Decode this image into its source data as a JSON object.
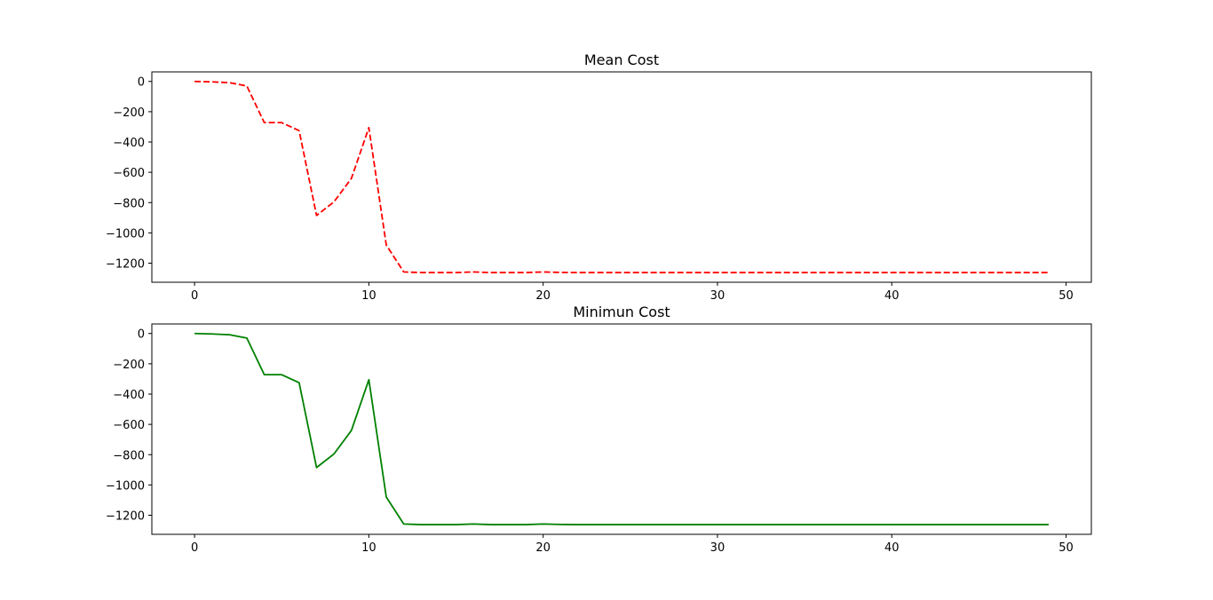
{
  "chart_data": [
    {
      "type": "line",
      "title": "Mean Cost",
      "xlabel": "",
      "ylabel": "",
      "xlim": [
        -2.45,
        51.45
      ],
      "ylim": [
        -1326,
        63
      ],
      "xticks": [
        0,
        10,
        20,
        30,
        40,
        50
      ],
      "yticks": [
        0,
        -200,
        -400,
        -600,
        -800,
        -1000,
        -1200
      ],
      "xtick_labels": [
        "0",
        "10",
        "20",
        "30",
        "40",
        "50"
      ],
      "ytick_labels": [
        "0",
        "−200",
        "−400",
        "−600",
        "−800",
        "−1000",
        "−1200"
      ],
      "grid": false,
      "series": [
        {
          "color": "#ff0000",
          "linestyle": "dashed",
          "x": [
            0,
            1,
            2,
            3,
            4,
            5,
            6,
            7,
            8,
            9,
            10,
            11,
            12,
            13,
            14,
            15,
            16,
            17,
            18,
            19,
            20,
            21,
            22,
            23,
            24,
            25,
            26,
            27,
            28,
            29,
            30,
            31,
            32,
            33,
            34,
            35,
            36,
            37,
            38,
            39,
            40,
            41,
            42,
            43,
            44,
            45,
            46,
            47,
            48,
            49
          ],
          "y": [
            0,
            -3,
            -8,
            -30,
            -272,
            -272,
            -325,
            -885,
            -795,
            -640,
            -305,
            -1080,
            -1258,
            -1262,
            -1262,
            -1262,
            -1258,
            -1262,
            -1262,
            -1262,
            -1258,
            -1261,
            -1262,
            -1262,
            -1262,
            -1262,
            -1262,
            -1262,
            -1262,
            -1262,
            -1262,
            -1262,
            -1262,
            -1262,
            -1262,
            -1262,
            -1262,
            -1262,
            -1262,
            -1262,
            -1262,
            -1262,
            -1262,
            -1262,
            -1262,
            -1262,
            -1262,
            -1262,
            -1262,
            -1262
          ]
        }
      ]
    },
    {
      "type": "line",
      "title": "Minimun Cost",
      "xlabel": "",
      "ylabel": "",
      "xlim": [
        -2.45,
        51.45
      ],
      "ylim": [
        -1326,
        63
      ],
      "xticks": [
        0,
        10,
        20,
        30,
        40,
        50
      ],
      "yticks": [
        0,
        -200,
        -400,
        -600,
        -800,
        -1000,
        -1200
      ],
      "xtick_labels": [
        "0",
        "10",
        "20",
        "30",
        "40",
        "50"
      ],
      "ytick_labels": [
        "0",
        "−200",
        "−400",
        "−600",
        "−800",
        "−1000",
        "−1200"
      ],
      "grid": false,
      "series": [
        {
          "color": "#008000",
          "linestyle": "solid",
          "x": [
            0,
            1,
            2,
            3,
            4,
            5,
            6,
            7,
            8,
            9,
            10,
            11,
            12,
            13,
            14,
            15,
            16,
            17,
            18,
            19,
            20,
            21,
            22,
            23,
            24,
            25,
            26,
            27,
            28,
            29,
            30,
            31,
            32,
            33,
            34,
            35,
            36,
            37,
            38,
            39,
            40,
            41,
            42,
            43,
            44,
            45,
            46,
            47,
            48,
            49
          ],
          "y": [
            0,
            -3,
            -8,
            -30,
            -272,
            -272,
            -325,
            -885,
            -795,
            -640,
            -305,
            -1080,
            -1258,
            -1262,
            -1262,
            -1262,
            -1258,
            -1262,
            -1262,
            -1262,
            -1258,
            -1261,
            -1262,
            -1262,
            -1262,
            -1262,
            -1262,
            -1262,
            -1262,
            -1262,
            -1262,
            -1262,
            -1262,
            -1262,
            -1262,
            -1262,
            -1262,
            -1262,
            -1262,
            -1262,
            -1262,
            -1262,
            -1262,
            -1262,
            -1262,
            -1262,
            -1262,
            -1262,
            -1262,
            -1262
          ]
        }
      ]
    }
  ]
}
